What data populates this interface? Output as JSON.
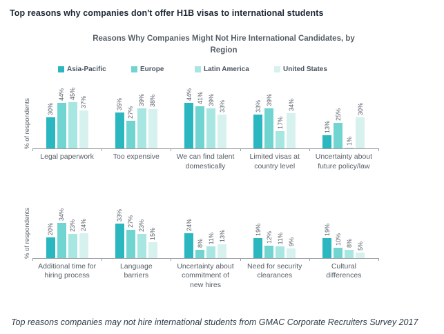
{
  "page": {
    "header": "Top reasons why companies don't offer H1B visas to international students",
    "footer": "Top reasons companies may not hire international students from GMAC Corporate Recruiters Survey 2017"
  },
  "chart_data": {
    "type": "bar",
    "title": "Reasons Why Companies Might Not Hire International Candidates, by Region",
    "ylabel": "% of respondents",
    "value_suffix": "%",
    "legend_position": "top",
    "grid": false,
    "series_names": [
      "Asia-Pacific",
      "Europe",
      "Latin America",
      "United States"
    ],
    "colors": [
      "#2bb7bf",
      "#70d4d0",
      "#a8e6e1",
      "#d7f2ee"
    ],
    "rows": [
      {
        "categories": [
          "Legal paperwork",
          "Too expensive",
          "We can find talent domestically",
          "Limited visas at country level",
          "Uncertainty about future policy/law"
        ],
        "series": [
          {
            "name": "Asia-Pacific",
            "values": [
              30,
              35,
              44,
              33,
              13
            ]
          },
          {
            "name": "Europe",
            "values": [
              44,
              27,
              41,
              39,
              25
            ]
          },
          {
            "name": "Latin America",
            "values": [
              45,
              39,
              39,
              17,
              1
            ]
          },
          {
            "name": "United States",
            "values": [
              37,
              38,
              33,
              34,
              30
            ]
          }
        ]
      },
      {
        "categories": [
          "Additional time for hiring process",
          "Language barriers",
          "Uncertainty about commitment of new hires",
          "Need for security clearances",
          "Cultural differences"
        ],
        "series": [
          {
            "name": "Asia-Pacific",
            "values": [
              20,
              33,
              24,
              19,
              19
            ]
          },
          {
            "name": "Europe",
            "values": [
              34,
              27,
              8,
              12,
              10
            ]
          },
          {
            "name": "Latin America",
            "values": [
              23,
              23,
              11,
              11,
              8
            ]
          },
          {
            "name": "United States",
            "values": [
              24,
              15,
              13,
              9,
              5
            ]
          }
        ]
      }
    ]
  }
}
